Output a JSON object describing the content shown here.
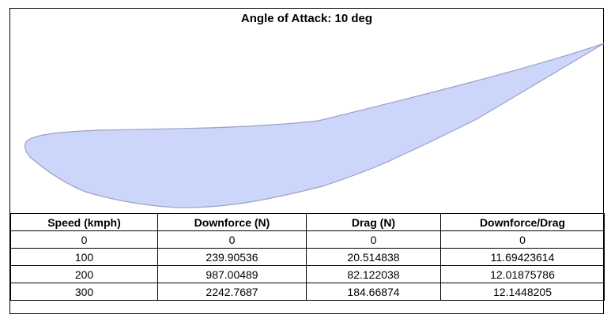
{
  "title": "Angle of Attack: 10 deg",
  "colors": {
    "airfoil_fill": "#ccd5fa",
    "airfoil_stroke": "#9aa0c6",
    "border": "#000000"
  },
  "table": {
    "headers": [
      "Speed (kmph)",
      "Downforce (N)",
      "Drag (N)",
      "Downforce/Drag"
    ],
    "rows": [
      [
        "0",
        "0",
        "0",
        "0"
      ],
      [
        "100",
        "239.90536",
        "20.514838",
        "11.69423614"
      ],
      [
        "200",
        "987.00489",
        "82.122038",
        "12.01875786"
      ],
      [
        "300",
        "2242.7687",
        "184.66874",
        "12.1448205"
      ]
    ]
  }
}
